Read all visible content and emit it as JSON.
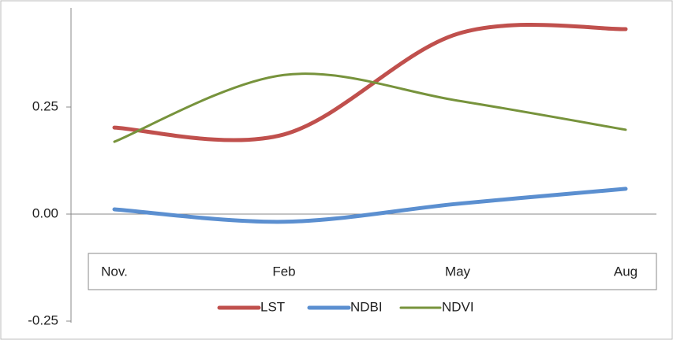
{
  "chart_data": {
    "type": "line",
    "categories": [
      "Nov.",
      "Feb",
      "May",
      "Aug"
    ],
    "series": [
      {
        "name": "LST",
        "color": "#c0504d",
        "values": [
          0.202,
          0.186,
          0.421,
          0.432
        ]
      },
      {
        "name": "NDBI",
        "color": "#5b8fd0",
        "values": [
          0.011,
          -0.018,
          0.024,
          0.059
        ]
      },
      {
        "name": "NDVI",
        "color": "#77933c",
        "values": [
          0.169,
          0.325,
          0.265,
          0.197
        ]
      }
    ],
    "ylim": [
      -0.25,
      0.5
    ],
    "yticks": [
      -0.25,
      {
        "value": 0,
        "label": "0.00"
      },
      0.25
    ],
    "smooth": true,
    "legend": "bottom"
  }
}
